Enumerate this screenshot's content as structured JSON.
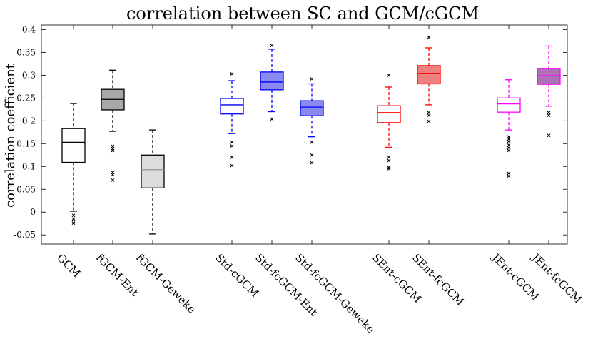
{
  "chart_data": {
    "type": "boxplot",
    "title": "correlation between SC and GCM/cGCM",
    "xlabel": "",
    "ylabel": "correlation coefficient",
    "ylim": [
      -0.07,
      0.41
    ],
    "yticks": [
      -0.05,
      0,
      0.05,
      0.1,
      0.15,
      0.2,
      0.25,
      0.3,
      0.35,
      0.4
    ],
    "ytick_labels": [
      "-0.05",
      "0",
      "0.05",
      "0.1",
      "0.15",
      "0.2",
      "0.25",
      "0.3",
      "0.35",
      "0.4"
    ],
    "grid": false,
    "categories": [
      "GCM",
      "fGCM-Ent",
      "fGCM-Geweke",
      "Std-cGCM",
      "Std-fcGCM-Ent",
      "Std-fcGCM-Geweke",
      "SEnt-cGCM",
      "SEnt-fcGCM",
      "JEnt-cGCM",
      "JEnt-fcGCM"
    ],
    "series": [
      {
        "name": "GCM",
        "edge": "#000000",
        "fill": "#ffffff",
        "whisker_low": 0.002,
        "q1": 0.109,
        "median": 0.153,
        "q3": 0.183,
        "whisker_high": 0.238,
        "outliers": [
          -0.007,
          -0.015,
          -0.024
        ]
      },
      {
        "name": "fGCM-Ent",
        "edge": "#000000",
        "fill": "#a8a8a8",
        "whisker_low": 0.177,
        "q1": 0.224,
        "median": 0.247,
        "q3": 0.269,
        "whisker_high": 0.311,
        "outliers": [
          0.144,
          0.139,
          0.135,
          0.087,
          0.082,
          0.07
        ]
      },
      {
        "name": "fGCM-Geweke",
        "edge": "#000000",
        "fill": "#dcdcdc",
        "median_color": "#909090",
        "whisker_low": -0.048,
        "q1": 0.053,
        "median": 0.093,
        "q3": 0.125,
        "whisker_high": 0.18,
        "outliers": []
      },
      {
        "name": "Std-cGCM",
        "edge": "#0000ff",
        "fill": "#ffffff",
        "whisker_low": 0.172,
        "q1": 0.215,
        "median": 0.235,
        "q3": 0.249,
        "whisker_high": 0.288,
        "outliers": [
          0.303,
          0.153,
          0.145,
          0.12,
          0.102
        ]
      },
      {
        "name": "Std-fcGCM-Ent",
        "edge": "#0000ff",
        "fill": "#8a8aee",
        "whisker_low": 0.22,
        "q1": 0.268,
        "median": 0.285,
        "q3": 0.307,
        "whisker_high": 0.357,
        "outliers": [
          0.365,
          0.204
        ]
      },
      {
        "name": "Std-fcGCM-Geweke",
        "edge": "#0000ff",
        "fill": "#8a8aee",
        "whisker_low": 0.165,
        "q1": 0.211,
        "median": 0.23,
        "q3": 0.244,
        "whisker_high": 0.281,
        "outliers": [
          0.292,
          0.153,
          0.125,
          0.108
        ]
      },
      {
        "name": "SEnt-cGCM",
        "edge": "#ff0000",
        "fill": "#ffffff",
        "whisker_low": 0.142,
        "q1": 0.196,
        "median": 0.218,
        "q3": 0.233,
        "whisker_high": 0.274,
        "outliers": [
          0.3,
          0.12,
          0.113,
          0.098,
          0.095
        ]
      },
      {
        "name": "SEnt-fcGCM",
        "edge": "#ff0000",
        "fill": "#f08080",
        "whisker_low": 0.235,
        "q1": 0.281,
        "median": 0.304,
        "q3": 0.321,
        "whisker_high": 0.36,
        "outliers": [
          0.383,
          0.218,
          0.212,
          0.199
        ]
      },
      {
        "name": "JEnt-cGCM",
        "edge": "#ff00ff",
        "fill": "#ffffff",
        "whisker_low": 0.18,
        "q1": 0.219,
        "median": 0.237,
        "q3": 0.25,
        "whisker_high": 0.29,
        "outliers": [
          0.165,
          0.16,
          0.155,
          0.147,
          0.141,
          0.135,
          0.085,
          0.079
        ]
      },
      {
        "name": "JEnt-fcGCM",
        "edge": "#ff00ff",
        "fill": "#b070b8",
        "whisker_low": 0.232,
        "q1": 0.28,
        "median": 0.299,
        "q3": 0.315,
        "whisker_high": 0.364,
        "outliers": [
          0.218,
          0.212,
          0.168
        ]
      }
    ]
  }
}
